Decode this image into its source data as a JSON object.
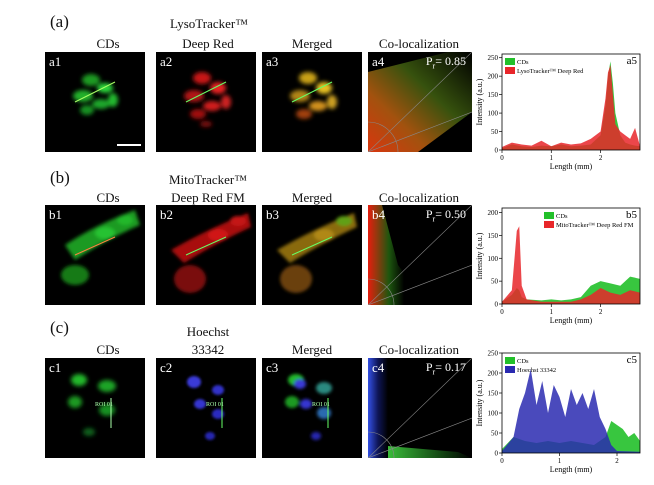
{
  "rows": [
    {
      "id": "a",
      "letter": "(a)",
      "headings": {
        "col1": "CDs",
        "col2_line1": "LysoTracker™",
        "col2_line2": "Deep Red",
        "col3": "Merged",
        "col4": "Co-localization"
      },
      "panels": [
        "a1",
        "a2",
        "a3",
        "a4",
        "a5"
      ],
      "pearson": "P",
      "pearson_sub": "r",
      "pearson_value": "= 0.85"
    },
    {
      "id": "b",
      "letter": "(b)",
      "headings": {
        "col1": "CDs",
        "col2_line1": "MitoTracker™",
        "col2_line2": "Deep Red FM",
        "col3": "Merged",
        "col4": "Co-localization"
      },
      "panels": [
        "b1",
        "b2",
        "b3",
        "b4",
        "b5"
      ],
      "pearson": "P",
      "pearson_sub": "r",
      "pearson_value": "= 0.50"
    },
    {
      "id": "c",
      "letter": "(c)",
      "headings": {
        "col1": "CDs",
        "col2_line1": "Hoechst",
        "col2_line2": "33342",
        "col3": "Merged",
        "col4": "Co-localization"
      },
      "panels": [
        "c1",
        "c2",
        "c3",
        "c4",
        "c5"
      ],
      "pearson": "P",
      "pearson_sub": "r",
      "pearson_value": "= 0.17",
      "roi_label": "ROI 01"
    }
  ],
  "colors": {
    "green": "#22c02a",
    "red": "#e8262a",
    "blue": "#2a2ab0"
  },
  "chart_data": [
    {
      "type": "area",
      "panel": "a5",
      "xlabel": "Length (mm)",
      "ylabel": "Intensity (a.u.)",
      "xlim": [
        0,
        2.8
      ],
      "ylim": [
        0,
        260
      ],
      "xticks": [
        "0",
        "1",
        "2"
      ],
      "yticks": [
        "0",
        "50",
        "100",
        "150",
        "200",
        "250"
      ],
      "legend": [
        "CDs",
        "LysoTracker™ Deep Red"
      ],
      "legend_position": "top-left",
      "series": [
        {
          "name": "CDs",
          "color": "#22c02a",
          "x": [
            0,
            0.2,
            0.4,
            0.6,
            0.8,
            1.0,
            1.2,
            1.4,
            1.6,
            1.8,
            2.0,
            2.1,
            2.15,
            2.2,
            2.25,
            2.3,
            2.4,
            2.5,
            2.6,
            2.7,
            2.8
          ],
          "y": [
            5,
            15,
            10,
            8,
            12,
            10,
            15,
            10,
            12,
            15,
            40,
            120,
            200,
            240,
            180,
            100,
            40,
            20,
            15,
            12,
            10
          ]
        },
        {
          "name": "LysoTracker™ Deep Red",
          "color": "#e8262a",
          "x": [
            0,
            0.2,
            0.4,
            0.6,
            0.8,
            1.0,
            1.2,
            1.4,
            1.6,
            1.8,
            2.0,
            2.1,
            2.15,
            2.2,
            2.25,
            2.3,
            2.4,
            2.5,
            2.6,
            2.7,
            2.8
          ],
          "y": [
            8,
            20,
            15,
            12,
            25,
            10,
            20,
            15,
            18,
            30,
            50,
            140,
            210,
            230,
            150,
            70,
            50,
            40,
            30,
            60,
            10
          ]
        }
      ]
    },
    {
      "type": "area",
      "panel": "b5",
      "xlabel": "Length (mm)",
      "ylabel": "Intensity (a.u.)",
      "xlim": [
        0,
        2.8
      ],
      "ylim": [
        0,
        210
      ],
      "xticks": [
        "0",
        "1",
        "2"
      ],
      "yticks": [
        "0",
        "50",
        "100",
        "150",
        "200"
      ],
      "legend": [
        "CDs",
        "MitoTracker™ Deep Red FM"
      ],
      "legend_position": "top-right",
      "series": [
        {
          "name": "CDs",
          "color": "#22c02a",
          "x": [
            0,
            0.2,
            0.3,
            0.35,
            0.4,
            0.5,
            0.8,
            1.0,
            1.2,
            1.4,
            1.6,
            1.8,
            2.0,
            2.2,
            2.4,
            2.6,
            2.8
          ],
          "y": [
            5,
            20,
            35,
            30,
            15,
            10,
            8,
            10,
            8,
            10,
            15,
            40,
            50,
            45,
            40,
            60,
            55
          ]
        },
        {
          "name": "MitoTracker™ Deep Red FM",
          "color": "#e8262a",
          "x": [
            0,
            0.2,
            0.3,
            0.35,
            0.4,
            0.5,
            0.8,
            1.0,
            1.2,
            1.4,
            1.6,
            1.8,
            2.0,
            2.2,
            2.4,
            2.6,
            2.8
          ],
          "y": [
            5,
            30,
            160,
            170,
            40,
            10,
            5,
            5,
            5,
            5,
            10,
            20,
            35,
            25,
            20,
            30,
            25
          ]
        }
      ]
    },
    {
      "type": "area",
      "panel": "c5",
      "xlabel": "Length (mm)",
      "ylabel": "Intensity (a.u.)",
      "xlim": [
        0,
        2.4
      ],
      "ylim": [
        0,
        250
      ],
      "xticks": [
        "0",
        "1",
        "2"
      ],
      "yticks": [
        "0",
        "50",
        "100",
        "150",
        "200",
        "250"
      ],
      "legend": [
        "CDs",
        "Hoechst 33342"
      ],
      "legend_position": "top-left",
      "series": [
        {
          "name": "CDs",
          "color": "#22c02a",
          "x": [
            0,
            0.2,
            0.4,
            0.6,
            0.8,
            1.0,
            1.2,
            1.4,
            1.6,
            1.8,
            1.9,
            2.0,
            2.1,
            2.2,
            2.3,
            2.4
          ],
          "y": [
            10,
            40,
            30,
            25,
            30,
            25,
            30,
            25,
            20,
            40,
            80,
            70,
            60,
            40,
            50,
            30
          ]
        },
        {
          "name": "Hoechst 33342",
          "color": "#2a2ab0",
          "x": [
            0,
            0.2,
            0.3,
            0.4,
            0.5,
            0.6,
            0.7,
            0.8,
            0.9,
            1.0,
            1.1,
            1.2,
            1.3,
            1.4,
            1.5,
            1.6,
            1.7,
            1.8,
            1.9,
            2.0,
            2.4
          ],
          "y": [
            5,
            40,
            110,
            150,
            210,
            120,
            180,
            100,
            170,
            140,
            90,
            160,
            120,
            150,
            110,
            160,
            90,
            60,
            20,
            5,
            3
          ]
        }
      ]
    }
  ]
}
